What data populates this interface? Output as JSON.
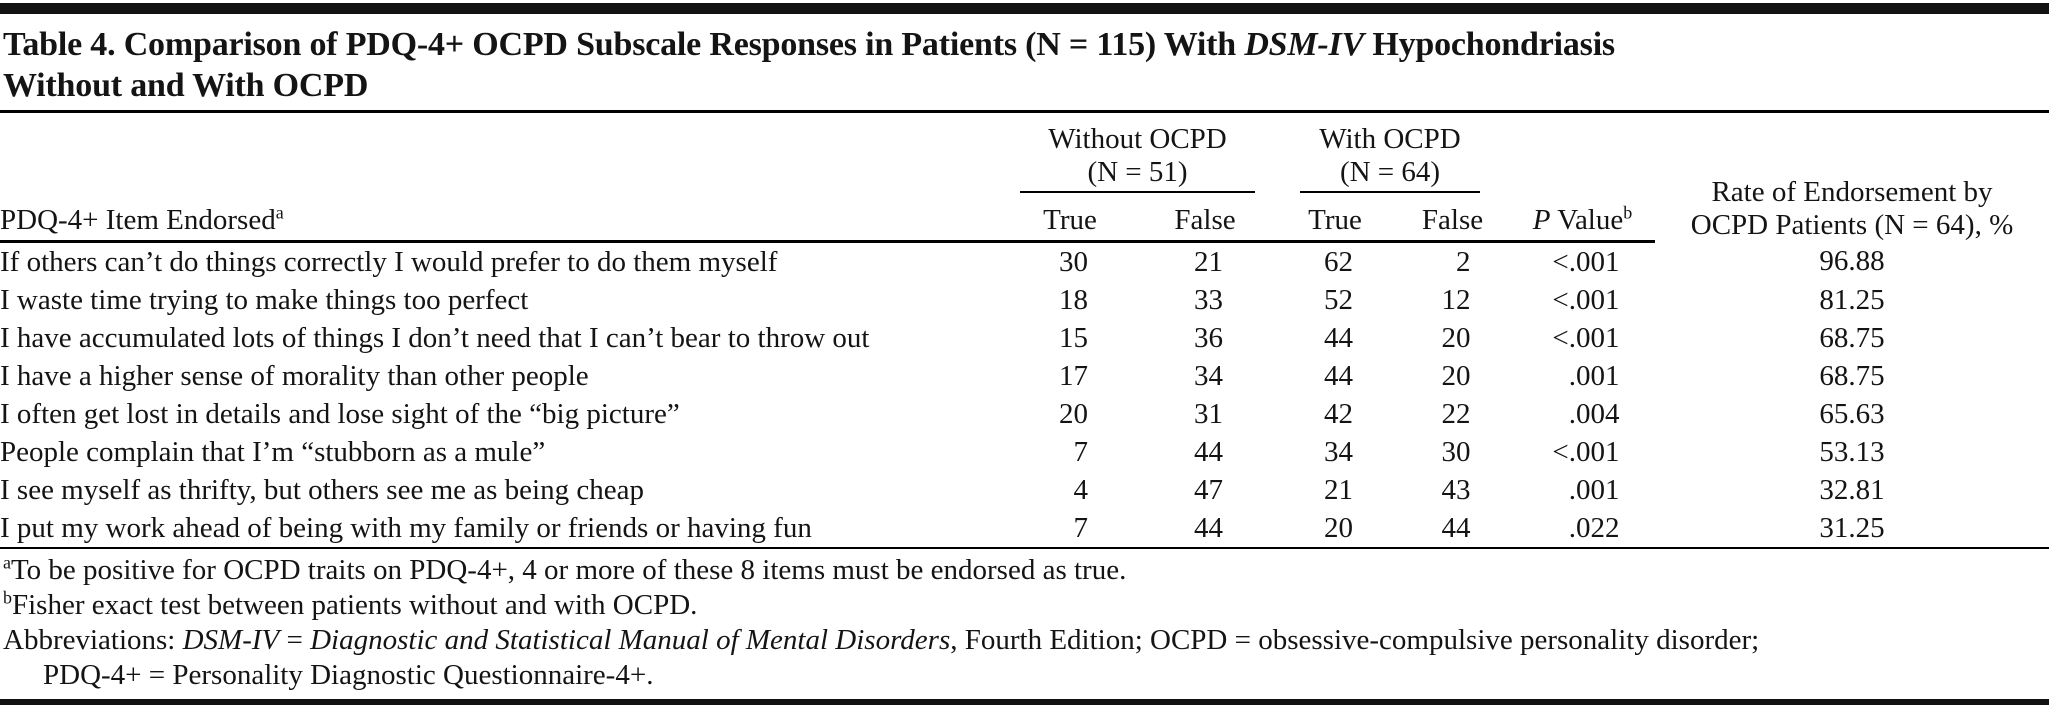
{
  "page": {
    "background": "#ffffff",
    "text_color": "#141414",
    "rule_color": "#000000"
  },
  "title": {
    "pre": "Table 4. Comparison of PDQ-4+ OCPD Subscale Responses in Patients (N = 115) With ",
    "italic": "DSM-IV",
    "post": " Hypochondriasis",
    "line2": "Without and With OCPD"
  },
  "table": {
    "item_header": {
      "text": "PDQ-4+ Item Endorsed",
      "sup": "a"
    },
    "group_without": {
      "line1": "Without OCPD",
      "line2": "(N = 51)"
    },
    "group_with": {
      "line1": "With OCPD",
      "line2": "(N = 64)"
    },
    "subheaders": {
      "without_true": "True",
      "without_false": "False",
      "with_true": "True",
      "with_false": "False"
    },
    "p_header": {
      "italic": "P",
      "text": " Value",
      "sup": "b"
    },
    "rate_header": {
      "line1": "Rate of Endorsement by",
      "line2": "OCPD Patients (N = 64), %"
    },
    "rows": [
      {
        "item": "If others can’t do things correctly I would prefer to do them myself",
        "without_true": "30",
        "without_false": "21",
        "with_true": "62",
        "with_false": "2",
        "p": "<.001",
        "rate": "96.88"
      },
      {
        "item": "I waste time trying to make things too perfect",
        "without_true": "18",
        "without_false": "33",
        "with_true": "52",
        "with_false": "12",
        "p": "<.001",
        "rate": "81.25"
      },
      {
        "item": "I have accumulated lots of things I don’t need that I can’t bear to throw out",
        "without_true": "15",
        "without_false": "36",
        "with_true": "44",
        "with_false": "20",
        "p": "<.001",
        "rate": "68.75"
      },
      {
        "item": "I have a higher sense of morality than other people",
        "without_true": "17",
        "without_false": "34",
        "with_true": "44",
        "with_false": "20",
        "p": ".001",
        "rate": "68.75"
      },
      {
        "item": "I often get lost in details and lose sight of the “big picture”",
        "without_true": "20",
        "without_false": "31",
        "with_true": "42",
        "with_false": "22",
        "p": ".004",
        "rate": "65.63"
      },
      {
        "item": "People complain that I’m “stubborn as a mule”",
        "without_true": "7",
        "without_false": "44",
        "with_true": "34",
        "with_false": "30",
        "p": "<.001",
        "rate": "53.13"
      },
      {
        "item": "I see myself as thrifty, but others see me as being cheap",
        "without_true": "4",
        "without_false": "47",
        "with_true": "21",
        "with_false": "43",
        "p": ".001",
        "rate": "32.81"
      },
      {
        "item": "I put my work ahead of being with my family or friends or having fun",
        "without_true": "7",
        "without_false": "44",
        "with_true": "20",
        "with_false": "44",
        "p": ".022",
        "rate": "31.25"
      }
    ]
  },
  "footnotes": {
    "a": {
      "sup": "a",
      "text": "To be positive for OCPD traits on PDQ-4+, 4 or more of these 8 items must be endorsed as true."
    },
    "b": {
      "sup": "b",
      "text": "Fisher exact test between patients without and with OCPD."
    },
    "abbreviations": {
      "pre": "Abbreviations: ",
      "italic1": "DSM-IV",
      "mid": " = ",
      "italic2": "Diagnostic and Statistical Manual of Mental Disorders",
      "post": ", Fourth Edition; OCPD = obsessive-compulsive personality disorder;",
      "line2": "PDQ-4+ = Personality Diagnostic Questionnaire-4+."
    }
  }
}
